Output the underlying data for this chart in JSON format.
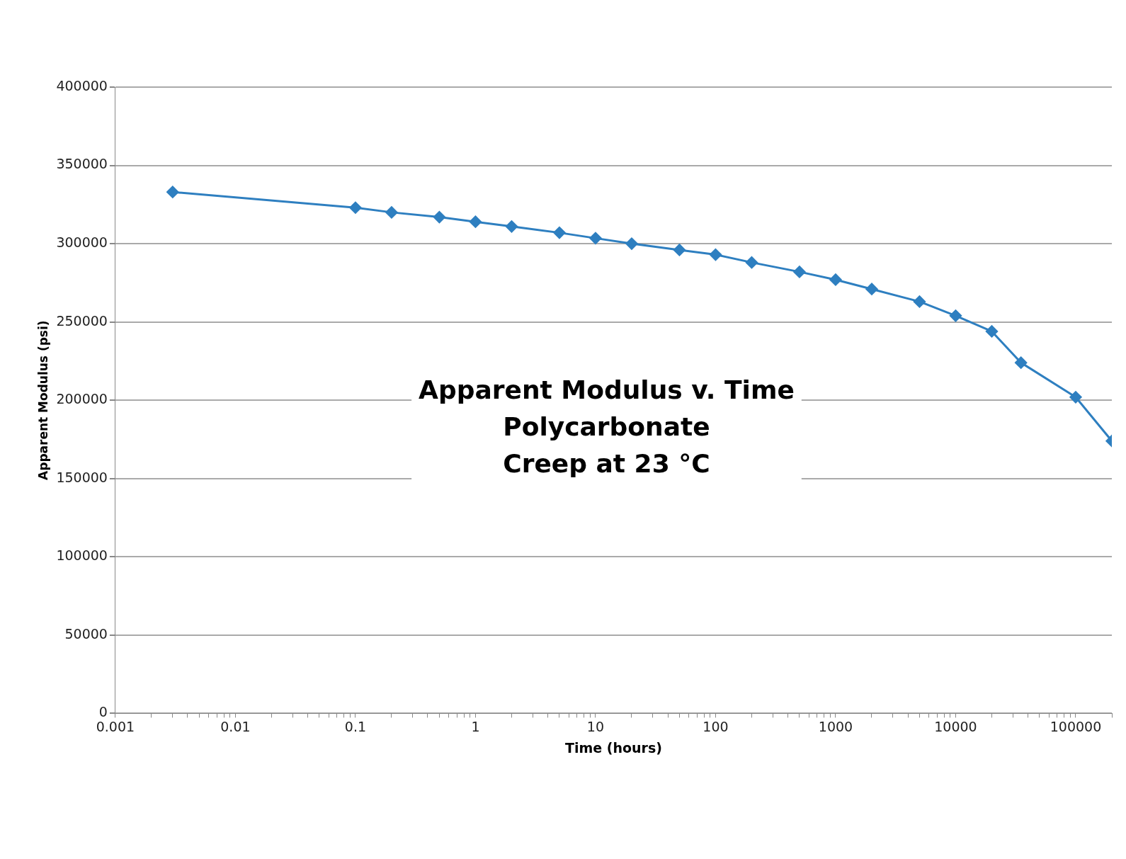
{
  "chart_data": {
    "type": "line",
    "title": "Apparent Modulus v. Time\nPolycarbonate\nCreep at 23 °C",
    "xlabel": "Time (hours)",
    "ylabel": "Apparent Modulus (psi)",
    "x": [
      0.003,
      0.1,
      0.2,
      0.5,
      1,
      2,
      5,
      10,
      20,
      50,
      100,
      200,
      500,
      1000,
      2000,
      5000,
      10000,
      20000,
      35000,
      100000,
      200000
    ],
    "series": [
      {
        "color": "#2e7fc0",
        "values": [
          333000,
          323000,
          320000,
          317000,
          314000,
          311000,
          307000,
          303500,
          300000,
          296000,
          293000,
          288000,
          282000,
          277000,
          271000,
          263000,
          254000,
          244000,
          224000,
          202000,
          174000
        ]
      }
    ],
    "log": "x",
    "xlim": [
      0.001,
      200000
    ],
    "xticks": [
      0.001,
      {
        "value": 0.002,
        "label": null
      },
      {
        "value": 0.003,
        "label": null
      },
      {
        "value": 0.004,
        "label": null
      },
      {
        "value": 0.005,
        "label": null
      },
      {
        "value": 0.006,
        "label": null
      },
      {
        "value": 0.007,
        "label": null
      },
      {
        "value": 0.008,
        "label": null
      },
      {
        "value": 0.009,
        "label": null
      },
      0.01,
      {
        "value": 0.02,
        "label": null
      },
      {
        "value": 0.03,
        "label": null
      },
      {
        "value": 0.04,
        "label": null
      },
      {
        "value": 0.05,
        "label": null
      },
      {
        "value": 0.06,
        "label": null
      },
      {
        "value": 0.07,
        "label": null
      },
      {
        "value": 0.08,
        "label": null
      },
      {
        "value": 0.09,
        "label": null
      },
      0.1,
      {
        "value": 0.2,
        "label": null
      },
      {
        "value": 0.3,
        "label": null
      },
      {
        "value": 0.4,
        "label": null
      },
      {
        "value": 0.5,
        "label": null
      },
      {
        "value": 0.6,
        "label": null
      },
      {
        "value": 0.7,
        "label": null
      },
      {
        "value": 0.8,
        "label": null
      },
      {
        "value": 0.9,
        "label": null
      },
      1,
      {
        "value": 2,
        "label": null
      },
      {
        "value": 3,
        "label": null
      },
      {
        "value": 4,
        "label": null
      },
      {
        "value": 5,
        "label": null
      },
      {
        "value": 6,
        "label": null
      },
      {
        "value": 7,
        "label": null
      },
      {
        "value": 8,
        "label": null
      },
      {
        "value": 9,
        "label": null
      },
      10,
      {
        "value": 20,
        "label": null
      },
      {
        "value": 30,
        "label": null
      },
      {
        "value": 40,
        "label": null
      },
      {
        "value": 50,
        "label": null
      },
      {
        "value": 60,
        "label": null
      },
      {
        "value": 70,
        "label": null
      },
      {
        "value": 80,
        "label": null
      },
      {
        "value": 90,
        "label": null
      },
      100,
      {
        "value": 200,
        "label": null
      },
      {
        "value": 300,
        "label": null
      },
      {
        "value": 400,
        "label": null
      },
      {
        "value": 500,
        "label": null
      },
      {
        "value": 600,
        "label": null
      },
      {
        "value": 700,
        "label": null
      },
      {
        "value": 800,
        "label": null
      },
      {
        "value": 900,
        "label": null
      },
      1000,
      {
        "value": 2000,
        "label": null
      },
      {
        "value": 3000,
        "label": null
      },
      {
        "value": 4000,
        "label": null
      },
      {
        "value": 5000,
        "label": null
      },
      {
        "value": 6000,
        "label": null
      },
      {
        "value": 7000,
        "label": null
      },
      {
        "value": 8000,
        "label": null
      },
      {
        "value": 9000,
        "label": null
      },
      10000,
      {
        "value": 20000,
        "label": null
      },
      {
        "value": 30000,
        "label": null
      },
      {
        "value": 40000,
        "label": null
      },
      {
        "value": 50000,
        "label": null
      },
      {
        "value": 60000,
        "label": null
      },
      {
        "value": 70000,
        "label": null
      },
      {
        "value": 80000,
        "label": null
      },
      {
        "value": 90000,
        "label": null
      },
      100000,
      {
        "value": 200000,
        "label": null
      }
    ],
    "ylim": [
      0,
      400000
    ],
    "yticks": [
      0,
      50000,
      100000,
      150000,
      200000,
      250000,
      300000,
      350000,
      400000
    ],
    "grid": "y",
    "legend": false,
    "marker": "diamond",
    "line_style": "solid"
  }
}
